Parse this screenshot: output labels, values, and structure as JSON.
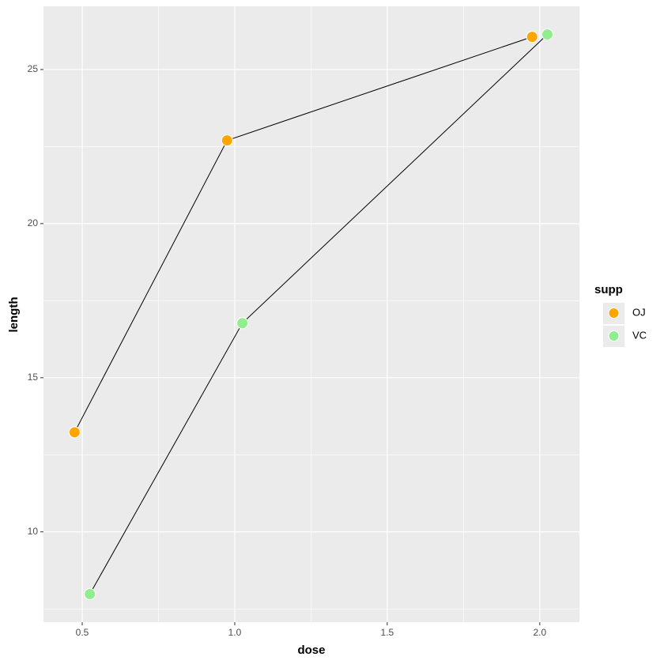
{
  "chart_data": {
    "type": "line",
    "x_label": "dose",
    "y_label": "length",
    "legend_title": "supp",
    "legend_position": "right",
    "series": [
      {
        "name": "OJ",
        "color": "#FFA500",
        "x": [
          0.475,
          0.975,
          1.975
        ],
        "values": [
          13.23,
          22.7,
          26.06
        ]
      },
      {
        "name": "VC",
        "color": "#90EE90",
        "x": [
          0.525,
          1.025,
          2.025
        ],
        "values": [
          7.98,
          16.77,
          26.14
        ]
      }
    ],
    "line_color": "#000000",
    "xlim": [
      0.373,
      2.13
    ],
    "ylim": [
      7.07,
      27.05
    ],
    "xticks": [
      0.5,
      {
        "value": 1,
        "label": "1.0"
      },
      1.5,
      {
        "value": 2,
        "label": "2.0"
      }
    ],
    "yticks": [
      10,
      15,
      20,
      25
    ],
    "xminor": [
      0.75,
      1.25,
      1.75
    ],
    "yminor": [
      7.5,
      12.5,
      17.5,
      22.5
    ],
    "grid": true
  }
}
